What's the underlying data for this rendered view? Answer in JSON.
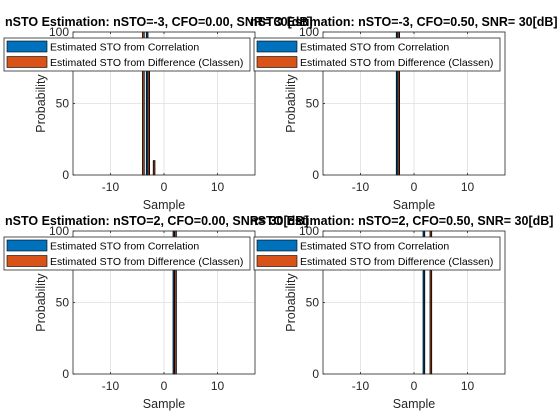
{
  "chart_data": [
    {
      "type": "bar",
      "title": "nSTO Estimation: nSTO=-3, CFO=0.00, SNR= 30[dB]",
      "xlabel": "Sample",
      "ylabel": "Probability",
      "xlim": [
        -17,
        17
      ],
      "ylim": [
        0,
        100
      ],
      "xticks": [
        -10,
        0,
        10
      ],
      "yticks": [
        0,
        50,
        100
      ],
      "grid": true,
      "legend": "top",
      "series": [
        {
          "name": "Estimated STO from Correlation",
          "color": "#0072bd",
          "x": [
            -4,
            -3,
            -2
          ],
          "values": [
            0,
            100,
            0
          ]
        },
        {
          "name": "Estimated STO from Difference (Classen)",
          "color": "#d95319",
          "x": [
            -4,
            -3,
            -2
          ],
          "values": [
            100,
            90,
            10
          ]
        }
      ]
    },
    {
      "type": "bar",
      "title": "nSTO Estimation: nSTO=-3, CFO=0.50, SNR= 30[dB]",
      "xlabel": "Sample",
      "ylabel": "Probability",
      "xlim": [
        -17,
        17
      ],
      "ylim": [
        0,
        100
      ],
      "xticks": [
        -10,
        0,
        10
      ],
      "yticks": [
        0,
        50,
        100
      ],
      "grid": true,
      "legend": "top",
      "series": [
        {
          "name": "Estimated STO from Correlation",
          "color": "#0072bd",
          "x": [
            -3
          ],
          "values": [
            100
          ]
        },
        {
          "name": "Estimated STO from Difference (Classen)",
          "color": "#d95319",
          "x": [
            -3
          ],
          "values": [
            100
          ]
        }
      ]
    },
    {
      "type": "bar",
      "title": "nSTO Estimation: nSTO=2, CFO=0.00, SNR= 30[dB]",
      "xlabel": "Sample",
      "ylabel": "Probability",
      "xlim": [
        -17,
        17
      ],
      "ylim": [
        0,
        100
      ],
      "xticks": [
        -10,
        0,
        10
      ],
      "yticks": [
        0,
        50,
        100
      ],
      "grid": true,
      "legend": "top",
      "series": [
        {
          "name": "Estimated STO from Correlation",
          "color": "#0072bd",
          "x": [
            2
          ],
          "values": [
            100
          ]
        },
        {
          "name": "Estimated STO from Difference (Classen)",
          "color": "#d95319",
          "x": [
            2
          ],
          "values": [
            100
          ]
        }
      ]
    },
    {
      "type": "bar",
      "title": "nSTO Estimation: nSTO=2, CFO=0.50, SNR= 30[dB]",
      "xlabel": "Sample",
      "ylabel": "Probability",
      "xlim": [
        -17,
        17
      ],
      "ylim": [
        0,
        100
      ],
      "xticks": [
        -10,
        0,
        10
      ],
      "yticks": [
        0,
        50,
        100
      ],
      "grid": true,
      "legend": "top",
      "series": [
        {
          "name": "Estimated STO from Correlation",
          "color": "#0072bd",
          "x": [
            2,
            3
          ],
          "values": [
            100,
            0
          ]
        },
        {
          "name": "Estimated STO from Difference (Classen)",
          "color": "#d95319",
          "x": [
            2,
            3
          ],
          "values": [
            0,
            100
          ]
        }
      ]
    }
  ]
}
